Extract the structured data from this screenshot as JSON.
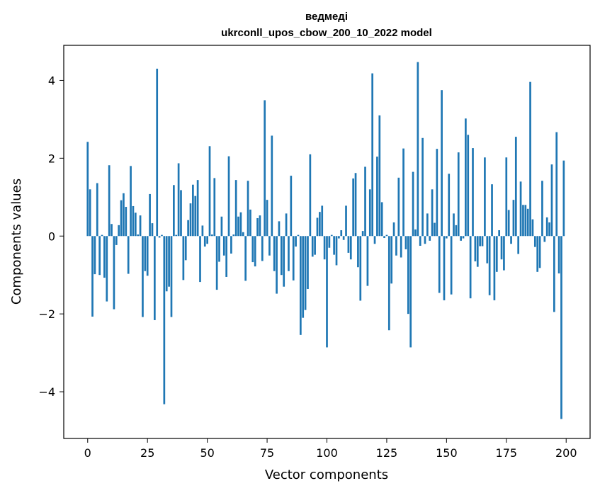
{
  "chart_data": {
    "type": "bar",
    "title": "ведмеді",
    "subtitle": "ukrconll_upos_cbow_200_10_2022 model",
    "xlabel": "Vector components",
    "ylabel": "Components values",
    "xlim": [
      -10,
      210
    ],
    "ylim": [
      -5.2,
      4.9
    ],
    "xticks": [
      0,
      25,
      50,
      75,
      100,
      125,
      150,
      175,
      200
    ],
    "yticks": [
      -4,
      -2,
      0,
      2,
      4
    ],
    "ytick_labels": [
      "−4",
      "−2",
      "0",
      "2",
      "4"
    ],
    "grid": false,
    "bar_color": "#1f77b4",
    "values": [
      2.42,
      1.2,
      -2.07,
      -0.98,
      1.36,
      -1.0,
      0.03,
      -1.07,
      -1.68,
      1.82,
      0.31,
      -1.88,
      -0.23,
      0.28,
      0.92,
      1.1,
      0.75,
      -0.97,
      1.8,
      0.77,
      0.6,
      0.04,
      0.53,
      -2.08,
      -0.9,
      -1.02,
      1.08,
      0.33,
      -2.16,
      4.3,
      -0.04,
      0.03,
      -4.32,
      -1.42,
      -1.3,
      -2.08,
      1.31,
      0.03,
      1.87,
      1.18,
      -1.13,
      -0.62,
      0.41,
      0.84,
      1.32,
      1.03,
      1.44,
      -1.18,
      0.27,
      -0.27,
      -0.2,
      2.31,
      0.04,
      1.49,
      -1.38,
      -0.66,
      0.5,
      -0.5,
      -1.05,
      2.05,
      -0.45,
      0.04,
      1.44,
      0.5,
      0.61,
      0.1,
      -1.15,
      1.42,
      0.68,
      -0.67,
      -0.78,
      0.46,
      0.53,
      -0.64,
      3.49,
      0.93,
      -0.5,
      2.58,
      -0.9,
      -1.48,
      0.38,
      -1.0,
      -1.3,
      0.58,
      -0.9,
      1.55,
      -1.14,
      -0.27,
      0.03,
      -2.54,
      -2.1,
      -1.9,
      -1.36,
      2.1,
      -0.53,
      -0.48,
      0.47,
      0.62,
      0.78,
      -0.6,
      -2.86,
      -0.3,
      0.03,
      -0.48,
      -0.75,
      -0.06,
      0.15,
      -0.1,
      0.78,
      -0.43,
      -0.6,
      1.48,
      1.62,
      -0.8,
      -1.66,
      0.13,
      1.78,
      -1.28,
      1.2,
      4.18,
      -0.2,
      2.04,
      3.1,
      0.87,
      -0.05,
      0.03,
      -2.42,
      -1.22,
      0.35,
      -0.5,
      1.5,
      -0.55,
      2.25,
      -0.34,
      -2.0,
      -2.86,
      1.65,
      0.17,
      4.47,
      -0.25,
      2.52,
      -0.2,
      0.58,
      -0.12,
      1.2,
      0.34,
      2.24,
      -1.46,
      3.75,
      -1.65,
      -0.06,
      1.6,
      -1.5,
      0.58,
      0.28,
      2.15,
      -0.12,
      -0.06,
      3.02,
      2.6,
      -1.6,
      2.26,
      -0.65,
      -0.79,
      -0.26,
      -0.26,
      2.02,
      -0.7,
      -1.52,
      1.33,
      -1.65,
      -0.92,
      0.15,
      -0.6,
      -0.88,
      2.02,
      0.67,
      -0.2,
      0.93,
      2.55,
      -0.46,
      1.4,
      0.8,
      0.8,
      0.7,
      3.96,
      0.43,
      -0.28,
      -0.92,
      -0.82,
      1.42,
      -0.15,
      0.48,
      0.35,
      1.84,
      -1.95,
      2.67,
      -0.96,
      -4.7,
      1.94
    ]
  }
}
